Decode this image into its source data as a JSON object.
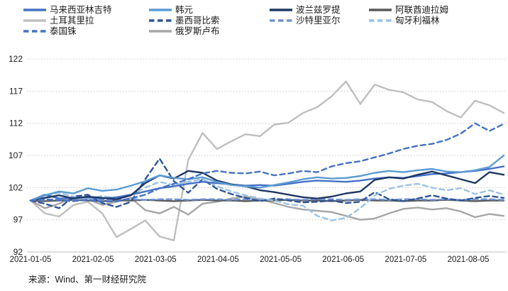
{
  "source_note": "来源：Wind、第一财经研究院",
  "chart_data": {
    "type": "line",
    "title": "",
    "xlabel": "",
    "ylabel": "",
    "x_start": "2021-01-05",
    "x_end": "2021-08-20",
    "cadence": "weekly (34 points per series, indexed 2021-01-05 = 100)",
    "x_labels": [
      "2021-01-05",
      "2021-02-05",
      "2021-03-05",
      "2021-04-05",
      "2021-05-05",
      "2021-06-05",
      "2021-07-05",
      "2021-08-05"
    ],
    "ylim": [
      92,
      122
    ],
    "yticks": [
      92,
      97,
      102,
      107,
      112,
      117,
      122
    ],
    "grid": "horizontal dotted light gray, solid baseline at 92",
    "legend_position": "top, 4 columns x 3 rows",
    "legend_layout": [
      [
        "马来西亚林吉特",
        "韩元",
        "波兰兹罗提",
        "阿联酋迪拉姆"
      ],
      [
        "土耳其里拉",
        "墨西哥比索",
        "沙特里亚尔",
        "匈牙利福林"
      ],
      [
        "泰国铢",
        "俄罗斯卢布"
      ]
    ],
    "series": [
      {
        "name": "马来西亚林吉特",
        "color": "#4472C4",
        "style": "solid",
        "z": 7,
        "values": [
          100,
          100.9,
          100.3,
          100.4,
          100.5,
          100.3,
          100.5,
          100.9,
          101.4,
          101.9,
          102.2,
          102.6,
          102.9,
          102.7,
          102.5,
          102.3,
          102.4,
          102.3,
          102.6,
          102.9,
          103.1,
          103.0,
          102.9,
          103.1,
          103.4,
          103.6,
          103.5,
          103.8,
          104.1,
          104.2,
          104.4,
          104.6,
          104.9,
          105.3
        ]
      },
      {
        "name": "韩元",
        "color": "#5B9BD5",
        "style": "solid",
        "z": 9,
        "values": [
          100,
          100.8,
          101.4,
          101.1,
          101.9,
          101.5,
          101.7,
          102.3,
          103.0,
          103.9,
          103.5,
          103.3,
          103.6,
          102.9,
          102.4,
          102.2,
          102.0,
          102.4,
          102.8,
          103.3,
          103.6,
          103.4,
          103.5,
          103.8,
          104.3,
          104.6,
          104.4,
          104.7,
          104.9,
          104.5,
          104.4,
          104.7,
          105.2,
          107.0
        ]
      },
      {
        "name": "波兰兹罗提",
        "color": "#1F3864",
        "style": "solid",
        "z": 8,
        "values": [
          100,
          100.4,
          100.8,
          100.3,
          100.6,
          100.4,
          100.2,
          100.8,
          102.7,
          103.9,
          103.4,
          104.6,
          104.3,
          103.1,
          102.5,
          102.2,
          101.6,
          101.3,
          100.9,
          100.5,
          100.3,
          100.6,
          101.1,
          101.4,
          103.2,
          103.6,
          103.4,
          104.0,
          104.5,
          103.9,
          103.3,
          102.7,
          104.4,
          104.0
        ]
      },
      {
        "name": "阿联酋迪拉姆",
        "color": "#595959",
        "style": "solid",
        "z": 3,
        "values": [
          100,
          99.9,
          100,
          100.1,
          100,
          99.9,
          100,
          100,
          100.1,
          100,
          99.9,
          100,
          100.1,
          100,
          100,
          99.9,
          100,
          100,
          100.1,
          100,
          100,
          99.9,
          100,
          100.1,
          100,
          100,
          99.9,
          100,
          100,
          100.1,
          100,
          99.9,
          100,
          100
        ]
      },
      {
        "name": "土耳其里拉",
        "color": "#BFBFBF",
        "style": "solid",
        "z": 1,
        "values": [
          100,
          98.0,
          97.5,
          99.3,
          99.8,
          98.0,
          94.3,
          95.6,
          96.9,
          94.4,
          93.8,
          106.3,
          110.5,
          108.0,
          109.2,
          110.3,
          110.0,
          111.8,
          112.1,
          113.6,
          114.5,
          116.2,
          118.5,
          115.0,
          118.0,
          117.2,
          116.8,
          115.7,
          115.3,
          113.9,
          112.9,
          115.5,
          114.8,
          113.6
        ]
      },
      {
        "name": "墨西哥比索",
        "color": "#2E5597",
        "style": "dashed",
        "z": 5,
        "values": [
          100,
          99.5,
          98.8,
          100.6,
          100.9,
          99.6,
          99.0,
          99.8,
          103.3,
          106.5,
          103.0,
          101.2,
          103.3,
          101.8,
          101.0,
          100.4,
          99.9,
          100.3,
          100.0,
          99.7,
          99.8,
          100.0,
          99.6,
          99.8,
          101.3,
          100.2,
          99.9,
          100.3,
          100.8,
          100.3,
          100.0,
          100.4,
          100.7,
          100.4
        ]
      },
      {
        "name": "沙特里亚尔",
        "color": "#6E94D6",
        "style": "dashed",
        "z": 4,
        "values": [
          100,
          100.1,
          100.2,
          100.1,
          100.2,
          100.1,
          100.1,
          100.2,
          100.1,
          100.2,
          100.2,
          100.1,
          100.2,
          100.2,
          100.1,
          100.2,
          100.1,
          100.2,
          100.2,
          100.1,
          100.2,
          100.2,
          100.1,
          100.2,
          100.2,
          100.1,
          100.2,
          100.2,
          100.1,
          100.2,
          100.1,
          100.2,
          100.2,
          100.1
        ]
      },
      {
        "name": "匈牙利福林",
        "color": "#9CC2E5",
        "style": "dashed",
        "z": 6,
        "values": [
          100,
          100.7,
          101.2,
          100.6,
          100.2,
          100.7,
          100.3,
          100.9,
          102.0,
          102.9,
          102.4,
          102.9,
          103.3,
          102.2,
          101.4,
          100.8,
          100.3,
          100.0,
          99.4,
          99.2,
          97.6,
          96.9,
          97.3,
          98.8,
          100.8,
          101.8,
          102.3,
          102.6,
          102.0,
          101.6,
          101.9,
          101.0,
          101.6,
          100.9
        ]
      },
      {
        "name": "泰国铢",
        "color": "#4472C4",
        "style": "dashed",
        "z": 10,
        "values": [
          100,
          100.2,
          100.0,
          99.9,
          100.1,
          99.8,
          99.9,
          100.3,
          100.9,
          101.9,
          102.6,
          103.3,
          104.2,
          104.6,
          104.3,
          104.2,
          104.5,
          103.9,
          104.2,
          104.6,
          104.4,
          105.3,
          105.8,
          106.1,
          106.7,
          107.3,
          108.0,
          108.5,
          108.8,
          109.4,
          110.4,
          112.0,
          110.8,
          111.9
        ]
      },
      {
        "name": "俄罗斯卢布",
        "color": "#A6A6A6",
        "style": "solid",
        "z": 2,
        "values": [
          100,
          98.8,
          99.5,
          100.6,
          100.2,
          99.3,
          99.8,
          100.4,
          98.5,
          98.0,
          99.0,
          97.8,
          99.5,
          99.8,
          100.3,
          100.6,
          100.2,
          99.6,
          99.0,
          98.6,
          98.4,
          98.2,
          97.6,
          97.0,
          97.2,
          98.0,
          98.7,
          98.9,
          98.6,
          98.8,
          98.3,
          97.4,
          97.9,
          97.6
        ]
      }
    ]
  }
}
